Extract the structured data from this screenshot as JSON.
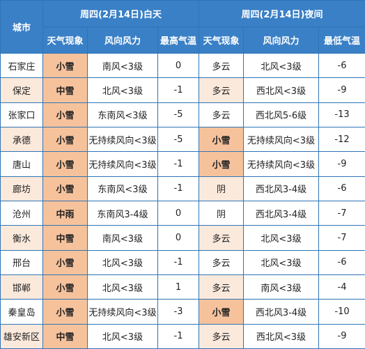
{
  "header": {
    "city_label": "城市",
    "day_title": "周四(2月14日)白天",
    "night_title": "周四(2月14日)夜间",
    "day_cols": [
      "天气现象",
      "风向风力",
      "最高气温"
    ],
    "night_cols": [
      "天气现象",
      "风向风力",
      "最低气温"
    ]
  },
  "rows": [
    {
      "city": "石家庄",
      "day_cond": "小雪",
      "day_wind": "南风<3级",
      "high": "0",
      "night_cond": "多云",
      "night_wind": "北风<3级",
      "low": "-6",
      "day_hl": true,
      "night_hl": false,
      "band": false
    },
    {
      "city": "保定",
      "day_cond": "中雪",
      "day_wind": "北风<3级",
      "high": "-1",
      "night_cond": "多云",
      "night_wind": "西北风<3级",
      "low": "-9",
      "day_hl": true,
      "night_hl": false,
      "band": true
    },
    {
      "city": "张家口",
      "day_cond": "小雪",
      "day_wind": "东南风<3级",
      "high": "-5",
      "night_cond": "多云",
      "night_wind": "西北风5-6级",
      "low": "-13",
      "day_hl": true,
      "night_hl": false,
      "band": false
    },
    {
      "city": "承德",
      "day_cond": "小雪",
      "day_wind": "无持续风向<3级",
      "high": "-5",
      "night_cond": "小雪",
      "night_wind": "无持续风向<3级",
      "low": "-12",
      "day_hl": true,
      "night_hl": true,
      "band": true
    },
    {
      "city": "唐山",
      "day_cond": "小雪",
      "day_wind": "无持续风向<3级",
      "high": "-1",
      "night_cond": "小雪",
      "night_wind": "无持续风向<3级",
      "low": "-9",
      "day_hl": true,
      "night_hl": true,
      "band": false
    },
    {
      "city": "廊坊",
      "day_cond": "小雪",
      "day_wind": "东南风<3级",
      "high": "-1",
      "night_cond": "阴",
      "night_wind": "西北风3-4级",
      "low": "-6",
      "day_hl": true,
      "night_hl": false,
      "band": true
    },
    {
      "city": "沧州",
      "day_cond": "中雨",
      "day_wind": "东南风3-4级",
      "high": "0",
      "night_cond": "阴",
      "night_wind": "西北风3-4级",
      "low": "-7",
      "day_hl": true,
      "night_hl": false,
      "band": false
    },
    {
      "city": "衡水",
      "day_cond": "中雪",
      "day_wind": "南风<3级",
      "high": "0",
      "night_cond": "多云",
      "night_wind": "北风<3级",
      "low": "-7",
      "day_hl": true,
      "night_hl": false,
      "band": true
    },
    {
      "city": "邢台",
      "day_cond": "小雪",
      "day_wind": "北风<3级",
      "high": "-1",
      "night_cond": "多云",
      "night_wind": "北风<3级",
      "low": "-6",
      "day_hl": true,
      "night_hl": false,
      "band": false
    },
    {
      "city": "邯郸",
      "day_cond": "小雪",
      "day_wind": "北风<3级",
      "high": "1",
      "night_cond": "多云",
      "night_wind": "南风<3级",
      "low": "-4",
      "day_hl": true,
      "night_hl": false,
      "band": true
    },
    {
      "city": "秦皇岛",
      "day_cond": "小雪",
      "day_wind": "无持续风向<3级",
      "high": "-3",
      "night_cond": "小雪",
      "night_wind": "西北风3-4级",
      "low": "-10",
      "day_hl": true,
      "night_hl": true,
      "band": false
    },
    {
      "city": "雄安新区",
      "day_cond": "中雪",
      "day_wind": "北风<3级",
      "high": "-1",
      "night_cond": "多云",
      "night_wind": "西北风<3级",
      "low": "-9",
      "day_hl": true,
      "night_hl": false,
      "band": true
    }
  ],
  "colors": {
    "header": "#3a80c6",
    "border": "#2e74b5",
    "highlight": "#f6c29c",
    "band": "#fbe9dc"
  }
}
